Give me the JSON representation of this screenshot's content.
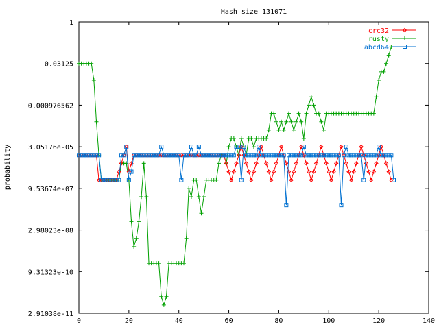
{
  "chart_data": {
    "type": "line",
    "title": "Hash size 131071",
    "ylabel": "probability",
    "xlabel": "",
    "xlim": [
      0,
      140
    ],
    "x_ticks": [
      "0",
      "20",
      "40",
      "60",
      "80",
      "100",
      "120",
      "140"
    ],
    "y_scale": "log",
    "ylim_exponents": [
      -35,
      0
    ],
    "y_ticks": [
      {
        "label": "1",
        "exp": 0
      },
      {
        "label": "0.03125",
        "exp": -5
      },
      {
        "label": "0.000976562",
        "exp": -10
      },
      {
        "label": "3.05176e-05",
        "exp": -15
      },
      {
        "label": "9.53674e-07",
        "exp": -20
      },
      {
        "label": "2.98023e-08",
        "exp": -25
      },
      {
        "label": "9.31323e-10",
        "exp": -30
      },
      {
        "label": "2.91038e-11",
        "exp": -35
      }
    ],
    "legend_position": "top-right",
    "series": [
      {
        "name": "crc32",
        "color": "#ff0000",
        "marker": "diamond",
        "exp": [
          -16,
          -16,
          -16,
          -16,
          -16,
          -16,
          -16,
          -16,
          -19,
          -19,
          -19,
          -19,
          -19,
          -19,
          -19,
          -19,
          -18,
          -17,
          -16,
          -15,
          -18,
          -17,
          -16,
          -16,
          -16,
          -16,
          -16,
          -16,
          -16,
          -16,
          -16,
          -16,
          -16,
          -16,
          -16,
          -16,
          -16,
          -16,
          -16,
          -16,
          -16,
          -16,
          -16,
          -16,
          -16,
          -16,
          -16,
          -16,
          -16,
          -16,
          -16,
          -16,
          -16,
          -16,
          -16,
          -16,
          -16,
          -16,
          -16,
          -17,
          -18,
          -19,
          -18,
          -17,
          -16,
          -15,
          -16,
          -17,
          -18,
          -19,
          -18,
          -17,
          -16,
          -15,
          -16,
          -17,
          -18,
          -19,
          -18,
          -17,
          -16,
          -15,
          -16,
          -17,
          -18,
          -19,
          -18,
          -17,
          -16,
          -15,
          -16,
          -17,
          -18,
          -19,
          -18,
          -17,
          -16,
          -15,
          -16,
          -17,
          -18,
          -19,
          -18,
          -17,
          -16,
          -15,
          -16,
          -17,
          -18,
          -19,
          -18,
          -17,
          -16,
          -15,
          -16,
          -17,
          -18,
          -19,
          -18,
          -17,
          -16,
          -15,
          -16,
          -17,
          -18,
          -19
        ],
        "x_start": 0
      },
      {
        "name": "rusty",
        "color": "#00a000",
        "marker": "plus",
        "exp": [
          -5,
          -5,
          -5,
          -5,
          -5,
          -5,
          -7,
          -12,
          -16,
          -19,
          -19,
          -19,
          -19,
          -19,
          -19,
          -19,
          -19,
          -17,
          -17,
          -17,
          -19,
          -24,
          -27,
          -26,
          -24,
          -21,
          -17,
          -21,
          -29,
          -29,
          -29,
          -29,
          -29,
          -33,
          -34,
          -33,
          -29,
          -29,
          -29,
          -29,
          -29,
          -29,
          -29,
          -26,
          -20,
          -21,
          -19,
          -19,
          -21,
          -23,
          -21,
          -19,
          -19,
          -19,
          -19,
          -19,
          -17,
          -16,
          -16,
          -17,
          -15,
          -14,
          -14,
          -15,
          -16,
          -14,
          -15,
          -16,
          -14,
          -14,
          -15,
          -14,
          -14,
          -14,
          -14,
          -14,
          -13,
          -11,
          -11,
          -12,
          -13,
          -12,
          -13,
          -12,
          -11,
          -12,
          -13,
          -12,
          -11,
          -12,
          -14,
          -11,
          -10,
          -9,
          -10,
          -11,
          -11,
          -12,
          -13,
          -11,
          -11,
          -11,
          -11,
          -11,
          -11,
          -11,
          -11,
          -11,
          -11,
          -11,
          -11,
          -11,
          -11,
          -11,
          -11,
          -11,
          -11,
          -11,
          -11,
          -9,
          -7,
          -6,
          -6,
          -5,
          -4,
          -3
        ],
        "x_start": 0
      },
      {
        "name": "abcd64",
        "color": "#0070d0",
        "marker": "square",
        "exp": [
          -16,
          -16,
          -16,
          -16,
          -16,
          -16,
          -16,
          -16,
          -16,
          -19,
          -19,
          -19,
          -19,
          -19,
          -19,
          -19,
          -19,
          -16,
          -16,
          -15,
          -19,
          -18,
          -16,
          -16,
          -16,
          -16,
          -16,
          -16,
          -16,
          -16,
          -16,
          -16,
          -16,
          -15,
          -16,
          -16,
          -16,
          -16,
          -16,
          -16,
          -16,
          -19,
          -16,
          -16,
          -16,
          -15,
          -16,
          -16,
          -15,
          -16,
          -16,
          -16,
          -16,
          -16,
          -16,
          -16,
          -16,
          -16,
          -16,
          -16,
          -16,
          -16,
          -16,
          -15,
          -15,
          -19,
          -15,
          -16,
          -16,
          -16,
          -16,
          -16,
          -15,
          -16,
          -16,
          -16,
          -16,
          -16,
          -16,
          -16,
          -16,
          -16,
          -16,
          -22,
          -16,
          -16,
          -16,
          -16,
          -16,
          -16,
          -15,
          -16,
          -16,
          -16,
          -16,
          -16,
          -16,
          -16,
          -16,
          -16,
          -16,
          -16,
          -16,
          -16,
          -16,
          -22,
          -16,
          -15,
          -16,
          -16,
          -16,
          -16,
          -16,
          -16,
          -19,
          -16,
          -16,
          -16,
          -16,
          -16,
          -15,
          -16,
          -16,
          -16,
          -16,
          -16,
          -19
        ],
        "x_start": 0
      }
    ]
  }
}
